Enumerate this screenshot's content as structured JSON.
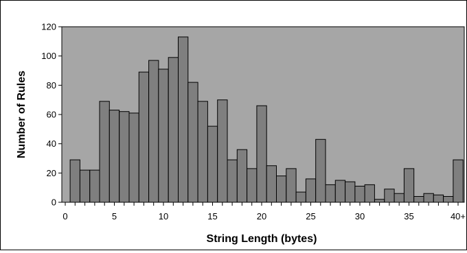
{
  "chart_data": {
    "type": "bar",
    "xlabel": "String Length (bytes)",
    "ylabel": "Number of Rules",
    "ylim": [
      0,
      120
    ],
    "yticks": [
      "0",
      "20",
      "40",
      "60",
      "80",
      "100",
      "120"
    ],
    "xticks": [
      "0",
      "5",
      "10",
      "15",
      "20",
      "25",
      "30",
      "35",
      "40+"
    ],
    "categories": [
      "1",
      "2",
      "3",
      "4",
      "5",
      "6",
      "7",
      "8",
      "9",
      "10",
      "11",
      "12",
      "13",
      "14",
      "15",
      "16",
      "17",
      "18",
      "19",
      "20",
      "21",
      "22",
      "23",
      "24",
      "25",
      "26",
      "27",
      "28",
      "29",
      "30",
      "31",
      "32",
      "33",
      "34",
      "35",
      "36",
      "37",
      "38",
      "39",
      "40+"
    ],
    "values": [
      29,
      22,
      22,
      69,
      63,
      62,
      61,
      89,
      97,
      91,
      99,
      113,
      82,
      69,
      52,
      70,
      29,
      36,
      23,
      66,
      25,
      18,
      23,
      7,
      16,
      43,
      12,
      15,
      14,
      11,
      12,
      2,
      9,
      6,
      23,
      4,
      6,
      5,
      4,
      29
    ],
    "grid": false,
    "legend": "none",
    "colors": {
      "plot_background": "#a6a6a6",
      "bar_fill": "#7f7f7f",
      "bar_stroke": "#000000"
    }
  }
}
